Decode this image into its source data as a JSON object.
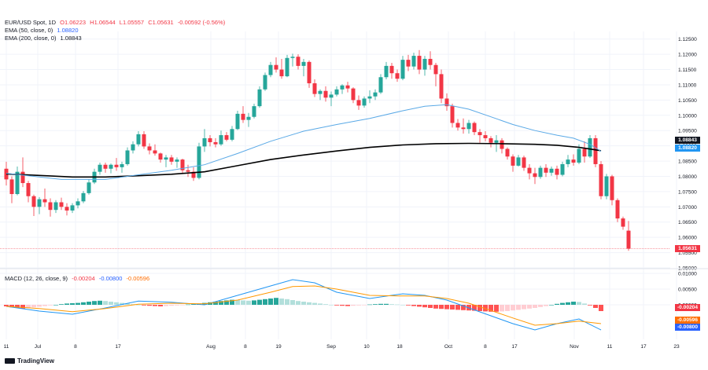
{
  "legend": {
    "symbol": "EUR/USD Spot, 1D",
    "open": "O1.06223",
    "high": "H1.06544",
    "low": "L1.05557",
    "close": "C1.05631",
    "change": "-0.00592 (-0.56%)",
    "ema50_label": "EMA (50, close, 0)",
    "ema50_value": "1.08820",
    "ema200_label": "EMA (200, close, 0)",
    "ema200_value": "1.08843",
    "macd_label": "MACD (12, 26, close, 9)",
    "macd_hist": "-0.00204",
    "macd_line": "-0.00800",
    "macd_signal": "-0.00596"
  },
  "branding": {
    "logo_text": "TradingView"
  },
  "price_tags": {
    "ema200": "1.08843",
    "ema50": "1.08820",
    "last": "1.05631",
    "macd_hist": "-0.00204",
    "macd_signal": "-0.00596",
    "macd_line": "-0.00800"
  },
  "colors": {
    "up": "#26a69a",
    "down": "#f23645",
    "ema50": "#5aa9e6",
    "ema200": "#000000",
    "macd_line": "#2196f3",
    "signal_line": "#ff9800",
    "hist_up_strong": "#26a69a",
    "hist_up_weak": "#b2dfdb",
    "hist_down_strong": "#ff5252",
    "hist_down_weak": "#ffcdd2",
    "grid": "#f0f3fa",
    "text": "#131722"
  },
  "chart_data": [
    {
      "type": "candlestick",
      "title": "EUR/USD Spot, 1D",
      "ylim": [
        1.05,
        1.1275
      ],
      "price_axis_ticks": [
        "1.12500",
        "1.12000",
        "1.11500",
        "1.11000",
        "1.10500",
        "1.10000",
        "1.09500",
        "1.09000",
        "1.08500",
        "1.08000",
        "1.07500",
        "1.07000",
        "1.06500",
        "1.06000",
        "1.05500",
        "1.05000"
      ],
      "date_axis_ticks": [
        "11",
        "Jul",
        "8",
        "17",
        "Aug",
        "8",
        "19",
        "Sep",
        "10",
        "18",
        "Oct",
        "8",
        "17",
        "Nov",
        "11",
        "17",
        "23"
      ],
      "grid": true,
      "last_price_line": 1.05631,
      "candles": [
        [
          1.0825,
          1.0848,
          1.077,
          1.079
        ],
        [
          1.079,
          1.08,
          1.0712,
          1.0742
        ],
        [
          1.0742,
          1.0832,
          1.0738,
          1.0815
        ],
        [
          1.0815,
          1.0862,
          1.0765,
          1.0778
        ],
        [
          1.0778,
          1.0785,
          1.0715,
          1.0735
        ],
        [
          1.0735,
          1.074,
          1.067,
          1.07
        ],
        [
          1.07,
          1.0732,
          1.0676,
          1.0725
        ],
        [
          1.0725,
          1.076,
          1.07,
          1.0715
        ],
        [
          1.0715,
          1.0728,
          1.0668,
          1.069
        ],
        [
          1.069,
          1.0722,
          1.068,
          1.0715
        ],
        [
          1.0715,
          1.073,
          1.069,
          1.07
        ],
        [
          1.07,
          1.0712,
          1.0672,
          1.0688
        ],
        [
          1.0688,
          1.0712,
          1.068,
          1.0705
        ],
        [
          1.0705,
          1.0728,
          1.0695,
          1.0718
        ],
        [
          1.0718,
          1.0752,
          1.0712,
          1.0745
        ],
        [
          1.0745,
          1.079,
          1.074,
          1.078
        ],
        [
          1.078,
          1.0825,
          1.0775,
          1.0815
        ],
        [
          1.0815,
          1.0845,
          1.0805,
          1.0838
        ],
        [
          1.0838,
          1.0845,
          1.0812,
          1.0825
        ],
        [
          1.0825,
          1.0842,
          1.081,
          1.0838
        ],
        [
          1.0838,
          1.086,
          1.0818,
          1.083
        ],
        [
          1.083,
          1.0848,
          1.0812,
          1.084
        ],
        [
          1.084,
          1.0895,
          1.0835,
          1.0885
        ],
        [
          1.0885,
          1.0915,
          1.0875,
          1.0905
        ],
        [
          1.0905,
          1.0948,
          1.0898,
          1.0938
        ],
        [
          1.0938,
          1.0948,
          1.089,
          1.0898
        ],
        [
          1.0898,
          1.0908,
          1.0872,
          1.0885
        ],
        [
          1.0885,
          1.0905,
          1.0868,
          1.0875
        ],
        [
          1.0875,
          1.0878,
          1.0845,
          1.0855
        ],
        [
          1.0855,
          1.087,
          1.083,
          1.0862
        ],
        [
          1.0862,
          1.087,
          1.0838,
          1.0848
        ],
        [
          1.0848,
          1.0862,
          1.0828,
          1.0855
        ],
        [
          1.0855,
          1.0858,
          1.0808,
          1.082
        ],
        [
          1.082,
          1.0838,
          1.0798,
          1.0815
        ],
        [
          1.0815,
          1.083,
          1.0785,
          1.0795
        ],
        [
          1.0795,
          1.091,
          1.079,
          1.0898
        ],
        [
          1.0898,
          1.0955,
          1.088,
          1.0925
        ],
        [
          1.0925,
          1.0935,
          1.0898,
          1.0912
        ],
        [
          1.0912,
          1.0925,
          1.0895,
          1.0905
        ],
        [
          1.0905,
          1.095,
          1.09,
          1.0935
        ],
        [
          1.0935,
          1.0945,
          1.0915,
          1.092
        ],
        [
          1.092,
          1.0965,
          1.0915,
          1.0955
        ],
        [
          1.0955,
          1.1015,
          1.0952,
          1.1005
        ],
        [
          1.1005,
          1.103,
          1.0975,
          1.0985
        ],
        [
          1.0985,
          1.1008,
          1.0962,
          1.0995
        ],
        [
          1.0995,
          1.1038,
          1.099,
          1.103
        ],
        [
          1.103,
          1.1095,
          1.1025,
          1.1085
        ],
        [
          1.1085,
          1.114,
          1.108,
          1.1132
        ],
        [
          1.1132,
          1.1175,
          1.1125,
          1.1165
        ],
        [
          1.1165,
          1.119,
          1.114,
          1.115
        ],
        [
          1.115,
          1.1185,
          1.112,
          1.1128
        ],
        [
          1.1128,
          1.1198,
          1.1125,
          1.1188
        ],
        [
          1.1188,
          1.1202,
          1.116,
          1.1192
        ],
        [
          1.1192,
          1.12,
          1.115,
          1.1162
        ],
        [
          1.1162,
          1.1185,
          1.1128,
          1.1175
        ],
        [
          1.1175,
          1.118,
          1.109,
          1.1105
        ],
        [
          1.1105,
          1.1118,
          1.106,
          1.107
        ],
        [
          1.107,
          1.1085,
          1.105,
          1.108
        ],
        [
          1.108,
          1.1095,
          1.1045,
          1.1058
        ],
        [
          1.1058,
          1.1078,
          1.103,
          1.1068
        ],
        [
          1.1068,
          1.1095,
          1.1062,
          1.1085
        ],
        [
          1.1085,
          1.1102,
          1.107,
          1.1098
        ],
        [
          1.1098,
          1.111,
          1.1075,
          1.1088
        ],
        [
          1.1088,
          1.1092,
          1.104,
          1.105
        ],
        [
          1.105,
          1.1065,
          1.1018,
          1.1032
        ],
        [
          1.1032,
          1.1062,
          1.1025,
          1.1055
        ],
        [
          1.1055,
          1.1082,
          1.104,
          1.1062
        ],
        [
          1.1062,
          1.1085,
          1.105,
          1.1075
        ],
        [
          1.1075,
          1.1135,
          1.107,
          1.1125
        ],
        [
          1.1125,
          1.1175,
          1.1118,
          1.1162
        ],
        [
          1.1162,
          1.1172,
          1.112,
          1.1138
        ],
        [
          1.1138,
          1.115,
          1.111,
          1.112
        ],
        [
          1.112,
          1.1195,
          1.1115,
          1.1182
        ],
        [
          1.1182,
          1.1198,
          1.1145,
          1.116
        ],
        [
          1.116,
          1.1205,
          1.115,
          1.1195
        ],
        [
          1.1195,
          1.1214,
          1.1135,
          1.115
        ],
        [
          1.115,
          1.1195,
          1.113,
          1.1185
        ],
        [
          1.1185,
          1.121,
          1.115,
          1.1165
        ],
        [
          1.1165,
          1.1172,
          1.1095,
          1.1135
        ],
        [
          1.1135,
          1.115,
          1.104,
          1.1055
        ],
        [
          1.1055,
          1.1072,
          1.1015,
          1.103
        ],
        [
          1.103,
          1.1038,
          1.096,
          1.0975
        ],
        [
          1.0975,
          1.0988,
          1.095,
          1.096
        ],
        [
          1.096,
          1.099,
          1.094,
          1.0955
        ],
        [
          1.0955,
          1.0985,
          1.094,
          1.0975
        ],
        [
          1.0975,
          1.098,
          1.0935,
          1.0945
        ],
        [
          1.0945,
          1.0955,
          1.091,
          1.0935
        ],
        [
          1.0935,
          1.0948,
          1.0915,
          1.0925
        ],
        [
          1.0925,
          1.0932,
          1.0895,
          1.091
        ],
        [
          1.091,
          1.0935,
          1.088,
          1.0918
        ],
        [
          1.0918,
          1.0925,
          1.0875,
          1.089
        ],
        [
          1.089,
          1.0895,
          1.0855,
          1.0865
        ],
        [
          1.0865,
          1.0872,
          1.0815,
          1.0835
        ],
        [
          1.0835,
          1.087,
          1.0832,
          1.0862
        ],
        [
          1.0862,
          1.0868,
          1.0818,
          1.0828
        ],
        [
          1.0828,
          1.084,
          1.079,
          1.081
        ],
        [
          1.081,
          1.0828,
          1.0775,
          1.0798
        ],
        [
          1.0798,
          1.0835,
          1.0792,
          1.0828
        ],
        [
          1.0828,
          1.084,
          1.0798,
          1.0812
        ],
        [
          1.0812,
          1.0832,
          1.0802,
          1.0825
        ],
        [
          1.0825,
          1.0835,
          1.079,
          1.0805
        ],
        [
          1.0805,
          1.0848,
          1.08,
          1.084
        ],
        [
          1.084,
          1.087,
          1.083,
          1.0855
        ],
        [
          1.0855,
          1.0872,
          1.0835,
          1.0845
        ],
        [
          1.0845,
          1.0905,
          1.084,
          1.089
        ],
        [
          1.089,
          1.0915,
          1.0845,
          1.0865
        ],
        [
          1.0865,
          1.0935,
          1.086,
          1.0925
        ],
        [
          1.0925,
          1.0935,
          1.083,
          1.084
        ],
        [
          1.084,
          1.085,
          1.0725,
          1.0735
        ],
        [
          1.0735,
          1.0808,
          1.0725,
          1.08
        ],
        [
          1.08,
          1.0805,
          1.0705,
          1.0722
        ],
        [
          1.0722,
          1.0728,
          1.065,
          1.0662
        ],
        [
          1.0662,
          1.0668,
          1.0625,
          1.0635
        ],
        [
          1.0622,
          1.0654,
          1.0556,
          1.0563
        ]
      ],
      "ema50": [
        [
          0,
          1.081
        ],
        [
          10,
          1.079
        ],
        [
          18,
          1.079
        ],
        [
          24,
          1.0805
        ],
        [
          30,
          1.082
        ],
        [
          36,
          1.0838
        ],
        [
          42,
          1.0875
        ],
        [
          48,
          1.0915
        ],
        [
          54,
          1.0948
        ],
        [
          60,
          1.097
        ],
        [
          66,
          1.099
        ],
        [
          72,
          1.1015
        ],
        [
          76,
          1.103
        ],
        [
          80,
          1.1035
        ],
        [
          84,
          1.102
        ],
        [
          88,
          1.0995
        ],
        [
          92,
          1.097
        ],
        [
          96,
          1.095
        ],
        [
          100,
          1.0935
        ],
        [
          103,
          1.0925
        ],
        [
          106,
          1.0905
        ],
        [
          108,
          1.0882
        ]
      ],
      "ema200": [
        [
          0,
          1.0808
        ],
        [
          6,
          1.0803
        ],
        [
          12,
          1.0798
        ],
        [
          18,
          1.0798
        ],
        [
          24,
          1.0802
        ],
        [
          30,
          1.0807
        ],
        [
          36,
          1.0815
        ],
        [
          42,
          1.0835
        ],
        [
          48,
          1.0855
        ],
        [
          54,
          1.087
        ],
        [
          60,
          1.0883
        ],
        [
          66,
          1.0895
        ],
        [
          72,
          1.0903
        ],
        [
          78,
          1.0907
        ],
        [
          84,
          1.0908
        ],
        [
          90,
          1.0907
        ],
        [
          96,
          1.0905
        ],
        [
          100,
          1.0902
        ],
        [
          104,
          1.0895
        ],
        [
          108,
          1.0884
        ]
      ]
    },
    {
      "type": "macd",
      "title": "MACD (12, 26, close, 9)",
      "ylim": [
        -0.011,
        0.0095
      ],
      "axis_ticks": [
        "0.01000",
        "0.00500",
        "0.00000"
      ],
      "macd_line": [
        [
          0,
          -0.0005
        ],
        [
          6,
          -0.002
        ],
        [
          12,
          -0.003
        ],
        [
          18,
          -0.001
        ],
        [
          24,
          0.0012
        ],
        [
          30,
          0.0008
        ],
        [
          36,
          0.0
        ],
        [
          42,
          0.003
        ],
        [
          48,
          0.006
        ],
        [
          52,
          0.008
        ],
        [
          56,
          0.007
        ],
        [
          60,
          0.004
        ],
        [
          66,
          0.002
        ],
        [
          72,
          0.0035
        ],
        [
          76,
          0.003
        ],
        [
          80,
          0.0015
        ],
        [
          84,
          -0.001
        ],
        [
          88,
          -0.0035
        ],
        [
          92,
          -0.006
        ],
        [
          96,
          -0.008
        ],
        [
          100,
          -0.006
        ],
        [
          104,
          -0.0045
        ],
        [
          108,
          -0.008
        ]
      ],
      "signal_line": [
        [
          0,
          -0.0005
        ],
        [
          6,
          -0.0012
        ],
        [
          12,
          -0.0022
        ],
        [
          18,
          -0.0012
        ],
        [
          24,
          0.0002
        ],
        [
          30,
          0.0005
        ],
        [
          36,
          0.0003
        ],
        [
          42,
          0.0015
        ],
        [
          48,
          0.004
        ],
        [
          52,
          0.0058
        ],
        [
          56,
          0.006
        ],
        [
          60,
          0.005
        ],
        [
          66,
          0.003
        ],
        [
          72,
          0.0028
        ],
        [
          76,
          0.0028
        ],
        [
          80,
          0.002
        ],
        [
          84,
          0.0005
        ],
        [
          88,
          -0.0018
        ],
        [
          92,
          -0.0042
        ],
        [
          96,
          -0.0065
        ],
        [
          100,
          -0.006
        ],
        [
          104,
          -0.0052
        ],
        [
          108,
          -0.006
        ]
      ],
      "histogram": [
        -0.0005,
        -0.0008,
        -0.001,
        -0.0012,
        -0.001,
        -0.0008,
        -0.0006,
        -0.0004,
        -0.0002,
        0.0,
        0.0002,
        0.0004,
        0.0005,
        0.0006,
        0.0008,
        0.001,
        0.0012,
        0.0013,
        0.0012,
        0.001,
        0.0008,
        0.0006,
        0.0004,
        0.0002,
        0.0,
        -0.0002,
        -0.0003,
        -0.0004,
        -0.0005,
        -0.0004,
        -0.0003,
        -0.0002,
        -0.0001,
        0.0001,
        0.0002,
        0.0004,
        0.0006,
        0.0008,
        0.001,
        0.0012,
        0.0014,
        0.0016,
        0.0015,
        0.0014,
        0.0013,
        0.0014,
        0.0016,
        0.0018,
        0.002,
        0.0022,
        0.002,
        0.0018,
        0.0015,
        0.0012,
        0.001,
        0.0008,
        0.0006,
        0.0004,
        0.0002,
        0.0,
        -0.0002,
        -0.0003,
        -0.0004,
        -0.0003,
        -0.0002,
        -0.0001,
        0.0001,
        0.0002,
        0.0003,
        0.0003,
        0.0002,
        0.0001,
        0.0,
        -0.0002,
        -0.0004,
        -0.0006,
        -0.0008,
        -0.001,
        -0.0012,
        -0.0013,
        -0.0014,
        -0.0015,
        -0.0016,
        -0.0017,
        -0.0018,
        -0.0019,
        -0.002,
        -0.0021,
        -0.0022,
        -0.0022,
        -0.0021,
        -0.002,
        -0.0018,
        -0.0016,
        -0.0014,
        -0.0012,
        -0.001,
        -0.0007,
        -0.0004,
        0.0,
        0.0003,
        0.0006,
        0.0008,
        0.001,
        0.0009,
        0.0004,
        -0.0002,
        -0.001,
        -0.002
      ]
    }
  ]
}
